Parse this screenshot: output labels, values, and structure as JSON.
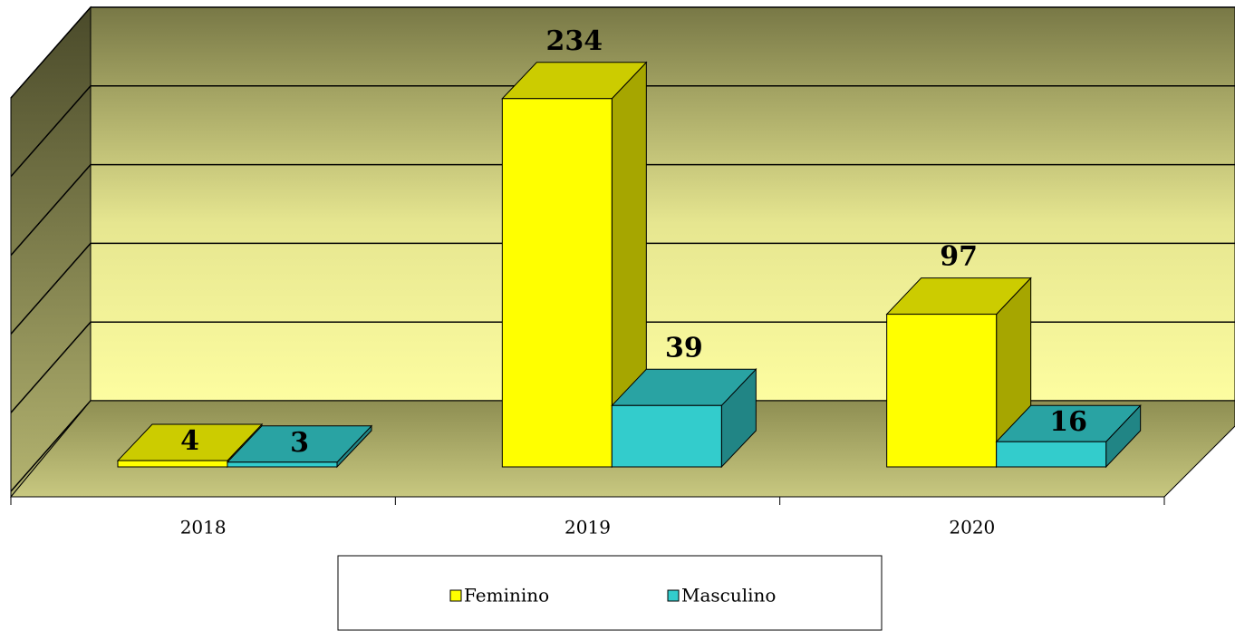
{
  "chart_data": {
    "type": "bar3d",
    "categories": [
      "2018",
      "2019",
      "2020"
    ],
    "series": [
      {
        "name": "Feminino",
        "color": "#ffff00",
        "values": [
          4,
          234,
          97
        ]
      },
      {
        "name": "Masculino",
        "color": "#33cccc",
        "values": [
          3,
          39,
          16
        ]
      }
    ],
    "ylim": [
      0,
      250
    ],
    "yticks": [
      0,
      50,
      100,
      150,
      200,
      250
    ],
    "grid": true,
    "legend": "bottom"
  }
}
